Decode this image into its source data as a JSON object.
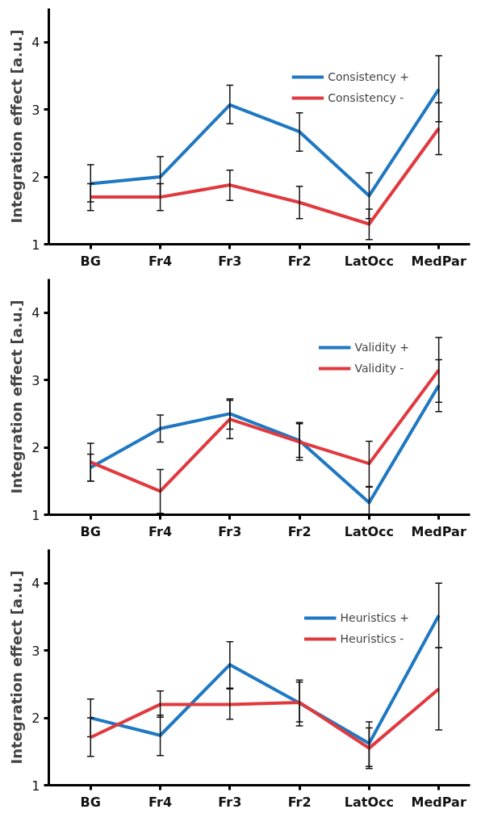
{
  "chart_data": [
    {
      "type": "line",
      "ylabel": "Integration effect [a.u.]",
      "categories": [
        "BG",
        "Fr4",
        "Fr3",
        "Fr2",
        "LatOcc",
        "MedPar"
      ],
      "ylim": [
        1,
        4.5
      ],
      "yticks": [
        1,
        2,
        3,
        4
      ],
      "grid": false,
      "legend": "top right",
      "marker": "none",
      "line_style": "solid",
      "series": [
        {
          "name": "Consistency +",
          "color": "#1f78c1",
          "values": [
            1.9,
            2.0,
            3.07,
            2.67,
            1.72,
            3.3
          ],
          "errors": [
            [
              1.63,
              2.18
            ],
            [
              1.7,
              2.3
            ],
            [
              2.79,
              3.36
            ],
            [
              2.38,
              2.95
            ],
            [
              1.38,
              2.06
            ],
            [
              2.82,
              3.8
            ]
          ]
        },
        {
          "name": "Consistency -",
          "color": "#e0393e",
          "values": [
            1.7,
            1.7,
            1.88,
            1.62,
            1.3,
            2.72
          ],
          "errors": [
            [
              1.5,
              1.9
            ],
            [
              1.5,
              1.9
            ],
            [
              1.65,
              2.1
            ],
            [
              1.38,
              1.86
            ],
            [
              1.07,
              1.52
            ],
            [
              2.33,
              3.1
            ]
          ]
        }
      ]
    },
    {
      "type": "line",
      "ylabel": "Integration effect [a.u.]",
      "categories": [
        "BG",
        "Fr4",
        "Fr3",
        "Fr2",
        "LatOcc",
        "MedPar"
      ],
      "ylim": [
        1,
        4.5
      ],
      "yticks": [
        1,
        2,
        3,
        4
      ],
      "grid": false,
      "legend": "top right",
      "marker": "none",
      "line_style": "solid",
      "series": [
        {
          "name": "Validity +",
          "color": "#1f78c1",
          "values": [
            1.7,
            2.28,
            2.5,
            2.1,
            1.18,
            2.92
          ],
          "errors": [
            [
              1.5,
              1.9
            ],
            [
              2.08,
              2.48
            ],
            [
              2.27,
              2.72
            ],
            [
              1.85,
              2.37
            ],
            [
              1.0,
              1.41
            ],
            [
              2.53,
              3.3
            ]
          ]
        },
        {
          "name": "Validity -",
          "color": "#e0393e",
          "values": [
            1.78,
            1.35,
            2.42,
            2.08,
            1.76,
            3.15
          ],
          "errors": [
            [
              1.5,
              2.06
            ],
            [
              1.02,
              1.67
            ],
            [
              2.13,
              2.7
            ],
            [
              1.81,
              2.35
            ],
            [
              1.42,
              2.09
            ],
            [
              2.67,
              3.63
            ]
          ]
        }
      ]
    },
    {
      "type": "line",
      "ylabel": "Integration effect [a.u.]",
      "categories": [
        "BG",
        "Fr4",
        "Fr3",
        "Fr2",
        "LatOcc",
        "MedPar"
      ],
      "ylim": [
        1,
        4.5
      ],
      "yticks": [
        1,
        2,
        3,
        4
      ],
      "grid": false,
      "legend": "top right",
      "marker": "none",
      "line_style": "solid",
      "series": [
        {
          "name": "Heuristics +",
          "color": "#1f78c1",
          "values": [
            2.0,
            1.74,
            2.79,
            2.22,
            1.62,
            3.52
          ],
          "errors": [
            [
              1.72,
              2.28
            ],
            [
              1.44,
              2.04
            ],
            [
              2.44,
              3.13
            ],
            [
              1.88,
              2.56
            ],
            [
              1.28,
              1.94
            ],
            [
              3.04,
              4.0
            ]
          ]
        },
        {
          "name": "Heuristics -",
          "color": "#e0393e",
          "values": [
            1.71,
            2.2,
            2.2,
            2.23,
            1.55,
            2.43
          ],
          "errors": [
            [
              1.43,
              2.0
            ],
            [
              2.01,
              2.4
            ],
            [
              1.98,
              2.43
            ],
            [
              1.94,
              2.53
            ],
            [
              1.25,
              1.85
            ],
            [
              1.82,
              3.04
            ]
          ]
        }
      ]
    }
  ]
}
